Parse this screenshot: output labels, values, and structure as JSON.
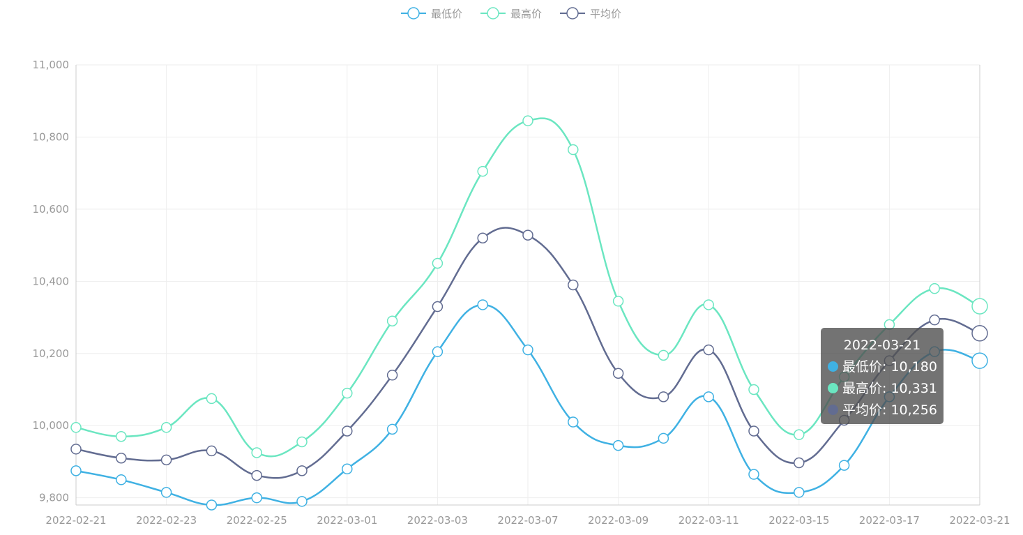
{
  "chart_data": {
    "type": "line",
    "smooth": true,
    "x": [
      "2022-02-21",
      "2022-02-22",
      "2022-02-23",
      "2022-02-24",
      "2022-02-25",
      "2022-02-26",
      "2022-03-01",
      "2022-03-02",
      "2022-03-03",
      "2022-03-04",
      "2022-03-07",
      "2022-03-08",
      "2022-03-09",
      "2022-03-10",
      "2022-03-11",
      "2022-03-14",
      "2022-03-15",
      "2022-03-16",
      "2022-03-17",
      "2022-03-18",
      "2022-03-21"
    ],
    "x_tick_labels": [
      "2022-02-21",
      "2022-02-23",
      "2022-02-25",
      "2022-03-01",
      "2022-03-03",
      "2022-03-07",
      "2022-03-09",
      "2022-03-11",
      "2022-03-15",
      "2022-03-17",
      "2022-03-21"
    ],
    "ylim": [
      9780,
      11000
    ],
    "y_ticks": [
      9800,
      10000,
      10200,
      10400,
      10600,
      10800,
      11000
    ],
    "y_tick_labels": [
      "9,800",
      "10,000",
      "10,200",
      "10,400",
      "10,600",
      "10,800",
      "11,000"
    ],
    "grid": true,
    "legend": "top-center",
    "series": [
      {
        "name": "最低价",
        "color": "#3fb1e3",
        "values": [
          9875,
          9850,
          9815,
          9780,
          9800,
          9790,
          9880,
          9990,
          10205,
          10335,
          10210,
          10010,
          9945,
          9965,
          10080,
          9865,
          9815,
          9890,
          10080,
          10205,
          10180
        ]
      },
      {
        "name": "最高价",
        "color": "#6be6c1",
        "values": [
          9995,
          9970,
          9995,
          10075,
          9925,
          9955,
          10090,
          10290,
          10450,
          10705,
          10845,
          10765,
          10345,
          10195,
          10335,
          10100,
          9975,
          10135,
          10280,
          10380,
          10331
        ]
      },
      {
        "name": "平均价",
        "color": "#626c91",
        "values": [
          9935,
          9910,
          9905,
          9930,
          9862,
          9875,
          9985,
          10140,
          10330,
          10520,
          10528,
          10390,
          10145,
          10080,
          10210,
          9985,
          9897,
          10015,
          10180,
          10293,
          10256
        ]
      }
    ],
    "tooltip": {
      "title": "2022-03-21",
      "rows": [
        {
          "label": "最低价: 10,180",
          "color": "#3fb1e3"
        },
        {
          "label": "最高价: 10,331",
          "color": "#6be6c1"
        },
        {
          "label": "平均价: 10,256",
          "color": "#626c91"
        }
      ]
    }
  }
}
